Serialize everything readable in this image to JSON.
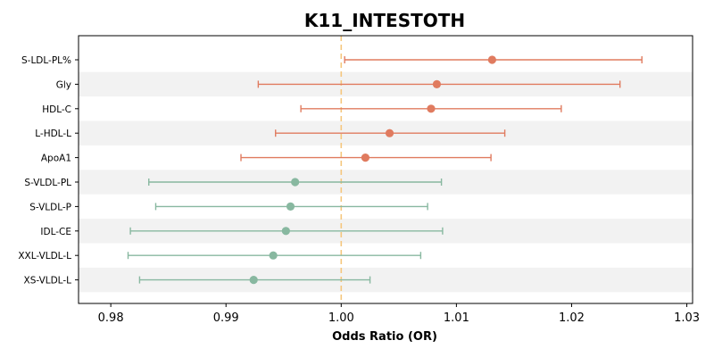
{
  "chart_data": {
    "type": "forest",
    "title": "K11_INTESTOTH",
    "xlabel": "Odds Ratio (OR)",
    "ylabel": "",
    "xlim": [
      0.9772,
      1.0305
    ],
    "xticks": [
      "0.98",
      "0.99",
      "1.00",
      "1.01",
      "1.02",
      "1.03"
    ],
    "reference_line": 1.0,
    "grid": false,
    "row_striping": true,
    "colors": {
      "positive": "#e07b5f",
      "negative": "#88b8a0",
      "reference": "#f5c77e",
      "stripe": "#f2f2f2"
    },
    "rows": [
      {
        "label": "S-LDL-PL%",
        "or": 1.0131,
        "lo": 1.0003,
        "hi": 1.0261
      },
      {
        "label": "Gly",
        "or": 1.0083,
        "lo": 0.9928,
        "hi": 1.0242
      },
      {
        "label": "HDL-C",
        "or": 1.0078,
        "lo": 0.9965,
        "hi": 1.0191
      },
      {
        "label": "L-HDL-L",
        "or": 1.0042,
        "lo": 0.9943,
        "hi": 1.0142
      },
      {
        "label": "ApoA1",
        "or": 1.0021,
        "lo": 0.9913,
        "hi": 1.013
      },
      {
        "label": "S-VLDL-PL",
        "or": 0.996,
        "lo": 0.9833,
        "hi": 1.0087
      },
      {
        "label": "S-VLDL-P",
        "or": 0.9956,
        "lo": 0.9839,
        "hi": 1.0075
      },
      {
        "label": "IDL-CE",
        "or": 0.9952,
        "lo": 0.9817,
        "hi": 1.0088
      },
      {
        "label": "XXL-VLDL-L",
        "or": 0.9941,
        "lo": 0.9815,
        "hi": 1.0069
      },
      {
        "label": "XS-VLDL-L",
        "or": 0.9924,
        "lo": 0.9825,
        "hi": 1.0025
      }
    ]
  }
}
